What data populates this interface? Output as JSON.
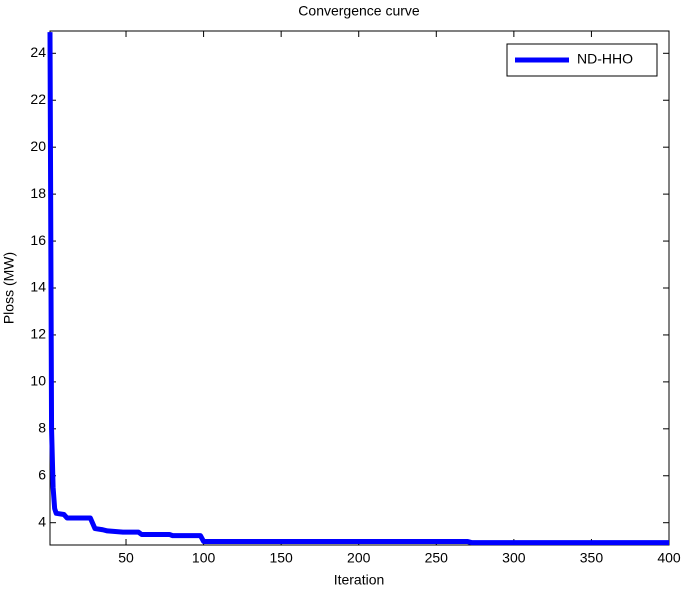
{
  "chart_data": {
    "type": "line",
    "title": "Convergence curve",
    "xlabel": "Iteration",
    "ylabel": "Ploss (MW)",
    "x": [
      1,
      2,
      3,
      4,
      5,
      10,
      12,
      27,
      30,
      35,
      38,
      48,
      58,
      60,
      78,
      80,
      98,
      100,
      270,
      273,
      400
    ],
    "series": [
      {
        "name": "ND-HHO",
        "color": "#0000ff",
        "values": [
          24.9,
          8,
          5.5,
          4.6,
          4.4,
          4.35,
          4.2,
          4.2,
          3.75,
          3.7,
          3.65,
          3.6,
          3.6,
          3.5,
          3.5,
          3.45,
          3.45,
          3.2,
          3.2,
          3.15,
          3.15
        ]
      }
    ],
    "xlim": [
      1,
      400
    ],
    "xticks": [
      50,
      100,
      150,
      200,
      250,
      300,
      350,
      400
    ],
    "ylim": [
      3.05,
      24.95
    ],
    "yticks": [
      4,
      6,
      8,
      10,
      12,
      14,
      16,
      18,
      20,
      22,
      24
    ],
    "legend": "northeast",
    "grid": false
  }
}
